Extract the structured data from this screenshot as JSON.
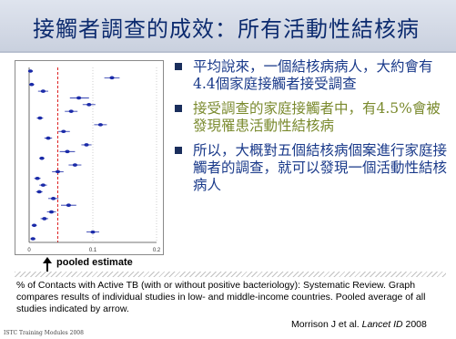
{
  "slide": {
    "title": "接觸者調查的成效：所有活動性結核病",
    "bullets": [
      "平均說來，一個結核病病人，大約會有4.4個家庭接觸者接受調查",
      "接受調查的家庭接觸者中，有4.5%會被發現罹患活動性結核病",
      "所以，大概對五個結核病個案進行家庭接觸者的調查，就可以發現一個活動性結核病人"
    ],
    "pooled_label": "pooled estimate",
    "caption": "% of Contacts with Active TB (with or without positive bacteriology): Systematic Review. Graph compares results of individual studies in low- and middle-income countries. Pooled average of all studies indicated by arrow.",
    "reference": {
      "authors": "Morrison J et al.",
      "journal": "Lancet ID",
      "year": "2008"
    },
    "footer": "ISTC Training Modules 2008"
  },
  "chart_data": {
    "type": "scatter",
    "title": "",
    "xlabel": "",
    "ylabel": "",
    "xlim": [
      0,
      0.2
    ],
    "x_ticks": [
      "0",
      "0.1",
      "0.2"
    ],
    "pooled_estimate": 0.045,
    "studies": [
      {
        "est": 0.002,
        "lo": 0.0,
        "hi": 0.006
      },
      {
        "est": 0.13,
        "lo": 0.118,
        "hi": 0.142
      },
      {
        "est": 0.004,
        "lo": 0.0,
        "hi": 0.008
      },
      {
        "est": 0.022,
        "lo": 0.014,
        "hi": 0.03
      },
      {
        "est": 0.078,
        "lo": 0.064,
        "hi": 0.094
      },
      {
        "est": 0.094,
        "lo": 0.084,
        "hi": 0.104
      },
      {
        "est": 0.066,
        "lo": 0.056,
        "hi": 0.076
      },
      {
        "est": 0.017,
        "lo": 0.012,
        "hi": 0.022
      },
      {
        "est": 0.112,
        "lo": 0.102,
        "hi": 0.122
      },
      {
        "est": 0.054,
        "lo": 0.046,
        "hi": 0.064
      },
      {
        "est": 0.03,
        "lo": 0.024,
        "hi": 0.036
      },
      {
        "est": 0.09,
        "lo": 0.082,
        "hi": 0.098
      },
      {
        "est": 0.06,
        "lo": 0.048,
        "hi": 0.072
      },
      {
        "est": 0.02,
        "lo": 0.016,
        "hi": 0.024
      },
      {
        "est": 0.072,
        "lo": 0.062,
        "hi": 0.082
      },
      {
        "est": 0.045,
        "lo": 0.036,
        "hi": 0.054
      },
      {
        "est": 0.013,
        "lo": 0.008,
        "hi": 0.018
      },
      {
        "est": 0.022,
        "lo": 0.016,
        "hi": 0.028
      },
      {
        "est": 0.016,
        "lo": 0.011,
        "hi": 0.021
      },
      {
        "est": 0.038,
        "lo": 0.03,
        "hi": 0.046
      },
      {
        "est": 0.062,
        "lo": 0.05,
        "hi": 0.074
      },
      {
        "est": 0.035,
        "lo": 0.028,
        "hi": 0.042
      },
      {
        "est": 0.024,
        "lo": 0.018,
        "hi": 0.03
      },
      {
        "est": 0.008,
        "lo": 0.004,
        "hi": 0.012
      },
      {
        "est": 0.1,
        "lo": 0.09,
        "hi": 0.11
      },
      {
        "est": 0.006,
        "lo": 0.002,
        "hi": 0.01
      }
    ]
  }
}
